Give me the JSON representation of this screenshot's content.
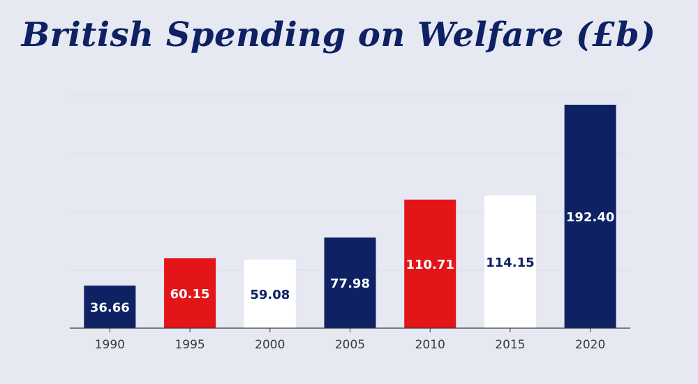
{
  "chart_data": {
    "type": "bar",
    "title": "British Spending on Welfare (£b)",
    "xlabel": "",
    "ylabel": "",
    "categories": [
      "1990",
      "1995",
      "2000",
      "2005",
      "2010",
      "2015",
      "2020"
    ],
    "values": [
      36.66,
      60.15,
      59.08,
      77.98,
      110.71,
      114.15,
      192.4
    ],
    "value_labels": [
      "36.66",
      "60.15",
      "59.08",
      "77.98",
      "110.71",
      "114.15",
      "192.40"
    ],
    "ylim": [
      0,
      200
    ],
    "grid": true,
    "legend": "none",
    "bar_colors": [
      "#0d2163",
      "#e31519",
      "#ffffff",
      "#0d2163",
      "#e31519",
      "#ffffff",
      "#0d2163"
    ],
    "label_colors": [
      "#ffffff",
      "#ffffff",
      "#0d2163",
      "#ffffff",
      "#ffffff",
      "#0d2163",
      "#ffffff"
    ]
  },
  "colors": {
    "background": "#e6e8f2",
    "title": "#0d2163",
    "axis": "#3a3a3a",
    "grid": "#d9dcea"
  }
}
